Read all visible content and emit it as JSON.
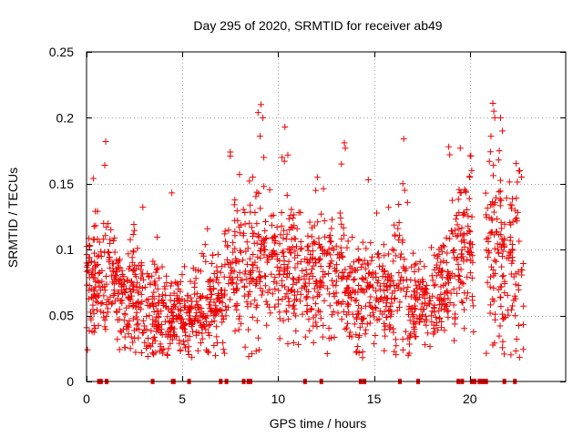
{
  "chart_data": {
    "type": "scatter",
    "title": "Day 295 of 2020, SRMTID for receiver ab49",
    "xlabel": "GPS time / hours",
    "ylabel": "SRMTID / TECUs",
    "xlim": [
      0,
      25
    ],
    "ylim": [
      0,
      0.25
    ],
    "xticks": [
      {
        "value": 0,
        "label": "0"
      },
      {
        "value": 5,
        "label": "5"
      },
      {
        "value": 10,
        "label": "10"
      },
      {
        "value": 15,
        "label": "15"
      },
      {
        "value": 20,
        "label": "20"
      }
    ],
    "yticks": [
      {
        "value": 0,
        "label": "0"
      },
      {
        "value": 0.05,
        "label": "0.05"
      },
      {
        "value": 0.1,
        "label": "0.1"
      },
      {
        "value": 0.15,
        "label": "0.15"
      },
      {
        "value": 0.2,
        "label": "0.2"
      },
      {
        "value": 0.25,
        "label": "0.25"
      }
    ],
    "grid": true,
    "marker": "+",
    "color": "#ee0000",
    "point_clusters": [
      {
        "x": [
          0,
          0.5
        ],
        "ymean": 0.08,
        "ysd": 0.025,
        "n": 60
      },
      {
        "x": [
          0.5,
          1.5
        ],
        "ymean": 0.08,
        "ysd": 0.022,
        "n": 80
      },
      {
        "x": [
          1.5,
          3.0
        ],
        "ymean": 0.065,
        "ysd": 0.02,
        "n": 140
      },
      {
        "x": [
          3.0,
          4.3
        ],
        "ymean": 0.05,
        "ysd": 0.018,
        "n": 110
      },
      {
        "x": [
          4.3,
          5.5
        ],
        "ymean": 0.05,
        "ysd": 0.015,
        "n": 110
      },
      {
        "x": [
          5.5,
          7.2
        ],
        "ymean": 0.06,
        "ysd": 0.02,
        "n": 140
      },
      {
        "x": [
          7.2,
          8.5
        ],
        "ymean": 0.085,
        "ysd": 0.025,
        "n": 90
      },
      {
        "x": [
          8.5,
          10.8
        ],
        "ymean": 0.09,
        "ysd": 0.028,
        "n": 190
      },
      {
        "x": [
          10.8,
          12.0
        ],
        "ymean": 0.08,
        "ysd": 0.025,
        "n": 100
      },
      {
        "x": [
          12.0,
          13.5
        ],
        "ymean": 0.085,
        "ysd": 0.025,
        "n": 110
      },
      {
        "x": [
          13.5,
          15.0
        ],
        "ymean": 0.065,
        "ysd": 0.022,
        "n": 120
      },
      {
        "x": [
          15.0,
          16.8
        ],
        "ymean": 0.07,
        "ysd": 0.025,
        "n": 130
      },
      {
        "x": [
          16.8,
          18.2
        ],
        "ymean": 0.055,
        "ysd": 0.018,
        "n": 110
      },
      {
        "x": [
          18.2,
          19.0
        ],
        "ymean": 0.07,
        "ysd": 0.022,
        "n": 70
      },
      {
        "x": [
          19.0,
          20.2
        ],
        "ymean": 0.1,
        "ysd": 0.03,
        "n": 100
      },
      {
        "x": [
          20.8,
          21.7
        ],
        "ymean": 0.1,
        "ysd": 0.04,
        "n": 80
      },
      {
        "x": [
          21.7,
          22.8
        ],
        "ymean": 0.09,
        "ysd": 0.035,
        "n": 80
      }
    ],
    "peak_points": [
      {
        "x": 0.35,
        "y": 0.154
      },
      {
        "x": 1.0,
        "y": 0.182
      },
      {
        "x": 0.95,
        "y": 0.164
      },
      {
        "x": 4.45,
        "y": 0.143
      },
      {
        "x": 7.5,
        "y": 0.174
      },
      {
        "x": 7.5,
        "y": 0.171
      },
      {
        "x": 8.5,
        "y": 0.152
      },
      {
        "x": 8.95,
        "y": 0.204
      },
      {
        "x": 9.1,
        "y": 0.21
      },
      {
        "x": 9.2,
        "y": 0.2
      },
      {
        "x": 9.05,
        "y": 0.186
      },
      {
        "x": 9.25,
        "y": 0.17
      },
      {
        "x": 10.35,
        "y": 0.193
      },
      {
        "x": 10.2,
        "y": 0.17
      },
      {
        "x": 13.45,
        "y": 0.181
      },
      {
        "x": 13.5,
        "y": 0.177
      },
      {
        "x": 13.3,
        "y": 0.165
      },
      {
        "x": 14.7,
        "y": 0.153
      },
      {
        "x": 16.5,
        "y": 0.15
      },
      {
        "x": 16.6,
        "y": 0.145
      },
      {
        "x": 16.55,
        "y": 0.184
      },
      {
        "x": 18.95,
        "y": 0.172
      },
      {
        "x": 18.9,
        "y": 0.178
      },
      {
        "x": 19.5,
        "y": 0.177
      },
      {
        "x": 20.05,
        "y": 0.171
      },
      {
        "x": 20.1,
        "y": 0.16
      },
      {
        "x": 20.0,
        "y": 0.155
      },
      {
        "x": 21.2,
        "y": 0.211
      },
      {
        "x": 21.3,
        "y": 0.2
      },
      {
        "x": 21.25,
        "y": 0.205
      },
      {
        "x": 21.1,
        "y": 0.186
      },
      {
        "x": 21.6,
        "y": 0.2
      },
      {
        "x": 21.7,
        "y": 0.19
      },
      {
        "x": 21.5,
        "y": 0.168
      },
      {
        "x": 22.6,
        "y": 0.16
      },
      {
        "x": 22.7,
        "y": 0.155
      },
      {
        "x": 0.05,
        "y": 0.024
      },
      {
        "x": 3.2,
        "y": 0.019
      },
      {
        "x": 4.9,
        "y": 0.024
      },
      {
        "x": 8.85,
        "y": 0.023
      },
      {
        "x": 16.5,
        "y": 0.032
      }
    ],
    "zero_points": [
      0.65,
      0.75,
      1.05,
      3.45,
      4.5,
      4.55,
      5.35,
      7.0,
      7.3,
      8.2,
      8.45,
      8.55,
      11.4,
      12.25,
      14.3,
      14.5,
      16.35,
      17.3,
      19.4,
      19.6,
      20.1,
      20.25,
      20.5,
      20.6,
      20.7,
      20.85,
      21.8,
      22.35
    ]
  }
}
